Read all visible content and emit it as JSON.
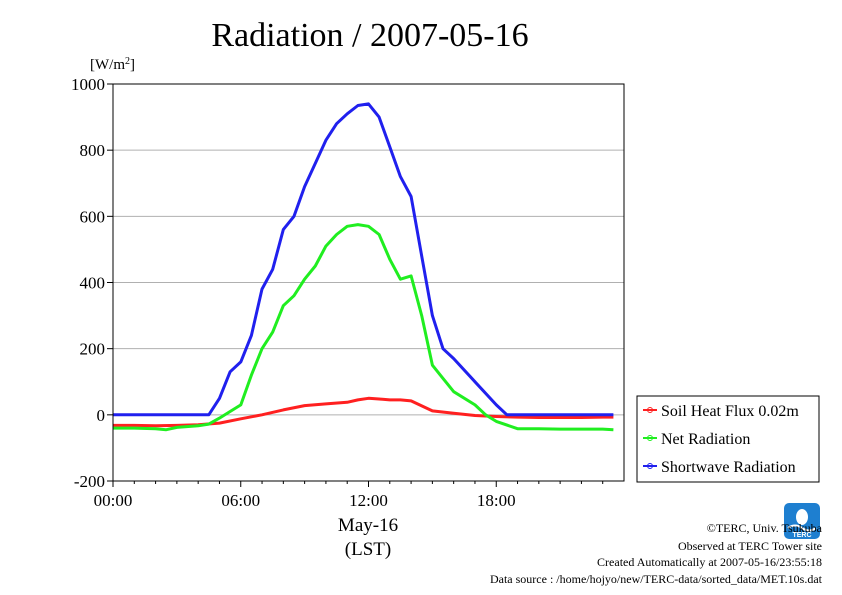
{
  "chart_data": {
    "type": "line",
    "title": "Radiation / 2007-05-16",
    "yunit": "[W/m",
    "yunit_sup": "2",
    "yunit_close": "]",
    "ylim": [
      -200,
      1000
    ],
    "yticks": [
      "1000",
      "800",
      "600",
      "400",
      "200",
      "0",
      "-200"
    ],
    "ytick_values": [
      1000,
      800,
      600,
      400,
      200,
      0,
      -200
    ],
    "xlim": [
      0,
      24
    ],
    "xticks": [
      "00:00",
      "06:00",
      "12:00",
      "18:00"
    ],
    "xtick_values": [
      0,
      6,
      12,
      18
    ],
    "xlabel_date": "May-16",
    "xlabel_tz": "(LST)",
    "grid": true,
    "legend_position": "right",
    "series": [
      {
        "name": "Soil Heat Flux 0.02m",
        "color": "#ff2020",
        "x": [
          0,
          1,
          2,
          3,
          4,
          5,
          6,
          7,
          8,
          9,
          10,
          11,
          11.5,
          12,
          12.5,
          13,
          13.5,
          14,
          15,
          16,
          17,
          18,
          19,
          20,
          21,
          22,
          23,
          23.5
        ],
        "y": [
          -32,
          -32,
          -33,
          -32,
          -30,
          -25,
          -12,
          0,
          15,
          28,
          33,
          38,
          45,
          50,
          48,
          45,
          45,
          42,
          12,
          5,
          -2,
          -5,
          -7,
          -8,
          -8,
          -8,
          -7,
          -7
        ]
      },
      {
        "name": "Net Radiation",
        "color": "#20ee20",
        "x": [
          0,
          1,
          2,
          2.5,
          3,
          4,
          4.5,
          5,
          5.5,
          6,
          6.5,
          7,
          7.5,
          8,
          8.5,
          9,
          9.5,
          10,
          10.5,
          11,
          11.5,
          12,
          12.5,
          13,
          13.5,
          14,
          14.5,
          15,
          15.5,
          16,
          17,
          17.5,
          18,
          19,
          20,
          21,
          22,
          23,
          23.5
        ],
        "y": [
          -40,
          -40,
          -42,
          -45,
          -38,
          -33,
          -28,
          -10,
          10,
          30,
          120,
          200,
          250,
          330,
          360,
          410,
          450,
          510,
          545,
          570,
          575,
          570,
          545,
          470,
          410,
          420,
          300,
          150,
          110,
          70,
          30,
          0,
          -20,
          -42,
          -42,
          -43,
          -43,
          -43,
          -45
        ]
      },
      {
        "name": "Shortwave Radiation",
        "color": "#2020ee",
        "x": [
          0,
          1,
          2,
          3,
          4,
          4.5,
          5,
          5.5,
          6,
          6.5,
          7,
          7.5,
          8,
          8.5,
          9,
          9.5,
          10,
          10.5,
          11,
          11.5,
          12,
          12.5,
          13,
          13.5,
          14,
          14.5,
          15,
          15.5,
          16,
          17,
          18,
          18.5,
          19,
          20,
          21,
          22,
          23,
          23.5
        ],
        "y": [
          0,
          0,
          0,
          0,
          0,
          0,
          50,
          130,
          160,
          240,
          380,
          440,
          560,
          600,
          690,
          760,
          830,
          880,
          910,
          935,
          940,
          900,
          810,
          720,
          660,
          480,
          300,
          200,
          170,
          100,
          30,
          0,
          0,
          0,
          0,
          0,
          0,
          0
        ]
      }
    ]
  },
  "logo": {
    "text": "TERC"
  },
  "credits": {
    "copyright": "©TERC, Univ. Tsukuba",
    "site": "Observed at TERC Tower site",
    "created": "Created Automatically at 2007-05-16/23:55:18",
    "source": "Data source : /home/hojyo/new/TERC-data/sorted_data/MET.10s.dat"
  }
}
